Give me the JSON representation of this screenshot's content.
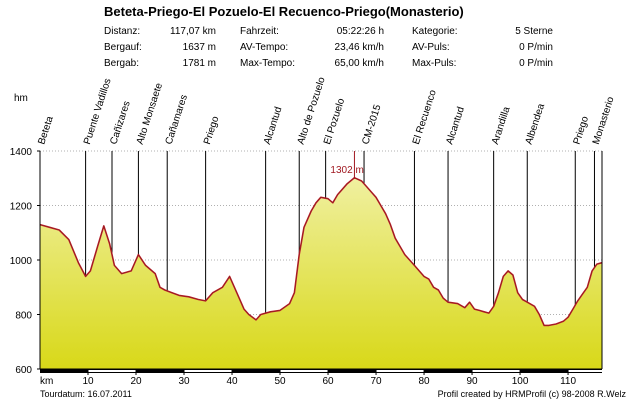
{
  "title": "Beteta-Priego-El Pozuelo-El Recuenco-Priego(Monasterio)",
  "stats": [
    [
      {
        "label": "Distanz:",
        "value": "117,07 km"
      },
      {
        "label": "Fahrzeit:",
        "value": "05:22:26 h"
      },
      {
        "label": "Kategorie:",
        "value": "5 Sterne"
      }
    ],
    [
      {
        "label": "Bergauf:",
        "value": "1637 m"
      },
      {
        "label": "AV-Tempo:",
        "value": "23,46 km/h"
      },
      {
        "label": "AV-Puls:",
        "value": "0 P/min"
      }
    ],
    [
      {
        "label": "Bergab:",
        "value": "1781 m"
      },
      {
        "label": "Max-Tempo:",
        "value": "65,00 km/h"
      },
      {
        "label": "Max-Puls:",
        "value": "0 P/min"
      }
    ]
  ],
  "footer": {
    "date": "Tourdatum: 16.07.2011",
    "credit": "Profil created by HRMProfil (c) 98-2008 R.Welz"
  },
  "colors": {
    "line": "#c0202a",
    "fill_top": "#f0f0a0",
    "fill_bottom": "#d8d818",
    "max_label": "#a01820"
  },
  "chart_data": {
    "type": "area",
    "ylabel": "hm",
    "xlabel": "km",
    "xlim": [
      0,
      117.07
    ],
    "ylim": [
      600,
      1400
    ],
    "x_ticks": [
      10,
      20,
      30,
      40,
      50,
      60,
      70,
      80,
      90,
      100,
      110
    ],
    "y_ticks": [
      600,
      800,
      1000,
      1200,
      1400
    ],
    "max_label": "1302 m",
    "max_point": [
      65.5,
      1302
    ],
    "waypoints": [
      {
        "name": "Beteta",
        "km": 0
      },
      {
        "name": "Puente Vadillos",
        "km": 9.5
      },
      {
        "name": "Cañizares",
        "km": 15
      },
      {
        "name": "Alto Monsaete",
        "km": 20.5
      },
      {
        "name": "Cañamares",
        "km": 26.5
      },
      {
        "name": "Priego",
        "km": 34.5
      },
      {
        "name": "Alcantud",
        "km": 47
      },
      {
        "name": "Alto de Pozuelo",
        "km": 54
      },
      {
        "name": "El Pozuelo",
        "km": 59.5
      },
      {
        "name": "CM-2015",
        "km": 67.5
      },
      {
        "name": "El Recuenco",
        "km": 78
      },
      {
        "name": "Alcantud",
        "km": 85
      },
      {
        "name": "Arandilla",
        "km": 94.5
      },
      {
        "name": "Albendea",
        "km": 101.5
      },
      {
        "name": "Priego",
        "km": 111.5
      },
      {
        "name": "Monasterio",
        "km": 115.5
      }
    ],
    "profile": [
      [
        0,
        1130
      ],
      [
        2,
        1120
      ],
      [
        4,
        1110
      ],
      [
        6,
        1075
      ],
      [
        8,
        990
      ],
      [
        9.5,
        940
      ],
      [
        10.5,
        960
      ],
      [
        12,
        1050
      ],
      [
        13.3,
        1125
      ],
      [
        14.5,
        1060
      ],
      [
        15.5,
        980
      ],
      [
        17,
        950
      ],
      [
        19,
        960
      ],
      [
        20.5,
        1020
      ],
      [
        22,
        980
      ],
      [
        24,
        950
      ],
      [
        25,
        900
      ],
      [
        26,
        890
      ],
      [
        27.5,
        880
      ],
      [
        29,
        870
      ],
      [
        31,
        865
      ],
      [
        33,
        855
      ],
      [
        34.5,
        850
      ],
      [
        36,
        880
      ],
      [
        38,
        900
      ],
      [
        39.5,
        940
      ],
      [
        41,
        880
      ],
      [
        42.5,
        820
      ],
      [
        43.5,
        800
      ],
      [
        45,
        780
      ],
      [
        46,
        800
      ],
      [
        48,
        810
      ],
      [
        50,
        815
      ],
      [
        52,
        840
      ],
      [
        53,
        880
      ],
      [
        54,
        1020
      ],
      [
        55,
        1120
      ],
      [
        56.5,
        1180
      ],
      [
        57.5,
        1210
      ],
      [
        58.5,
        1230
      ],
      [
        60,
        1225
      ],
      [
        61,
        1210
      ],
      [
        62,
        1240
      ],
      [
        63,
        1260
      ],
      [
        64,
        1280
      ],
      [
        65.5,
        1302
      ],
      [
        67,
        1290
      ],
      [
        68,
        1270
      ],
      [
        69,
        1250
      ],
      [
        70,
        1230
      ],
      [
        71,
        1200
      ],
      [
        72,
        1170
      ],
      [
        73,
        1130
      ],
      [
        74,
        1080
      ],
      [
        75,
        1050
      ],
      [
        76,
        1020
      ],
      [
        77,
        1000
      ],
      [
        78,
        980
      ],
      [
        79,
        960
      ],
      [
        80,
        940
      ],
      [
        81,
        930
      ],
      [
        82,
        900
      ],
      [
        83,
        890
      ],
      [
        84,
        860
      ],
      [
        85,
        845
      ],
      [
        87,
        840
      ],
      [
        88.5,
        825
      ],
      [
        89.5,
        845
      ],
      [
        90.5,
        820
      ],
      [
        91.5,
        815
      ],
      [
        92.5,
        810
      ],
      [
        93.5,
        805
      ],
      [
        94.5,
        830
      ],
      [
        95.5,
        880
      ],
      [
        96.5,
        940
      ],
      [
        97.5,
        960
      ],
      [
        98.5,
        945
      ],
      [
        99.5,
        880
      ],
      [
        100.5,
        855
      ],
      [
        101.5,
        845
      ],
      [
        103,
        830
      ],
      [
        104,
        800
      ],
      [
        105,
        760
      ],
      [
        106,
        760
      ],
      [
        107.5,
        765
      ],
      [
        109,
        775
      ],
      [
        110,
        790
      ],
      [
        111,
        820
      ],
      [
        112,
        850
      ],
      [
        113,
        875
      ],
      [
        114,
        900
      ],
      [
        115,
        960
      ],
      [
        116,
        985
      ],
      [
        117.07,
        990
      ]
    ]
  }
}
